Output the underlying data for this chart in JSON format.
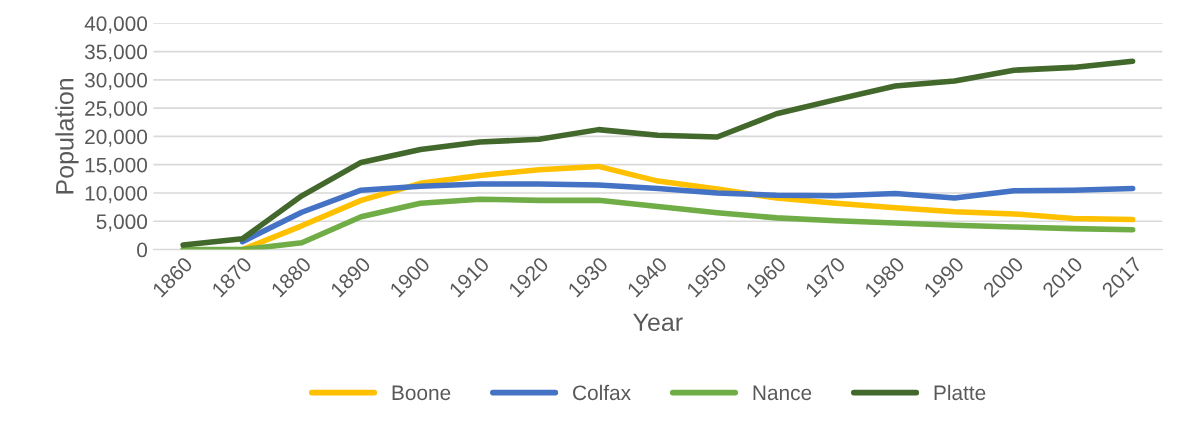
{
  "chart_data": {
    "type": "line",
    "xlabel": "Year",
    "ylabel": "Population",
    "categories": [
      "1860",
      "1870",
      "1880",
      "1890",
      "1900",
      "1910",
      "1920",
      "1930",
      "1940",
      "1950",
      "1960",
      "1970",
      "1980",
      "1990",
      "2000",
      "2010",
      "2017"
    ],
    "ylim": [
      0,
      40000
    ],
    "yticks": [
      {
        "value": 0,
        "label": "0"
      },
      {
        "value": 5000,
        "label": "5,000"
      },
      {
        "value": 10000,
        "label": "10,000"
      },
      {
        "value": 15000,
        "label": "15,000"
      },
      {
        "value": 20000,
        "label": "20,000"
      },
      {
        "value": 25000,
        "label": "25,000"
      },
      {
        "value": 30000,
        "label": "30,000"
      },
      {
        "value": 35000,
        "label": "35,000"
      },
      {
        "value": 40000,
        "label": "40,000"
      }
    ],
    "grid": "y",
    "legend": "bottom",
    "marker": "none",
    "line_style": "solid",
    "series": [
      {
        "name": "Boone",
        "color": "#ffc000",
        "values": [
          null,
          0,
          4200,
          8700,
          11700,
          13100,
          14100,
          14700,
          12100,
          10700,
          9100,
          8200,
          7400,
          6700,
          6300,
          5500,
          5300
        ]
      },
      {
        "name": "Colfax",
        "color": "#4472c4",
        "values": [
          null,
          1400,
          6600,
          10500,
          11200,
          11600,
          11600,
          11400,
          10800,
          10000,
          9600,
          9500,
          9900,
          9100,
          10400,
          10500,
          10800
        ]
      },
      {
        "name": "Nance",
        "color": "#70ad47",
        "values": [
          0,
          0,
          1200,
          5800,
          8200,
          8900,
          8700,
          8700,
          7600,
          6500,
          5600,
          5100,
          4700,
          4300,
          4000,
          3700,
          3500
        ]
      },
      {
        "name": "Platte",
        "color": "#43682b",
        "values": [
          800,
          1900,
          9500,
          15400,
          17700,
          19000,
          19500,
          21200,
          20200,
          19900,
          24000,
          26500,
          28900,
          29800,
          31700,
          32200,
          33300
        ]
      }
    ]
  }
}
